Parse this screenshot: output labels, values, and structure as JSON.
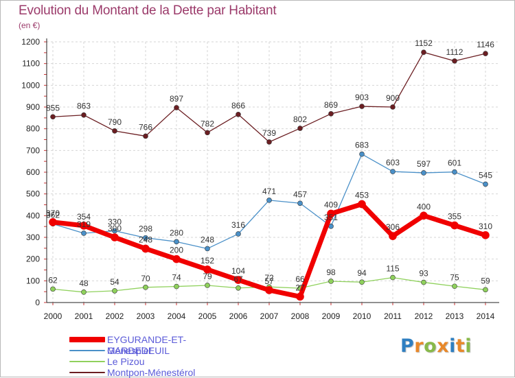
{
  "title": "Evolution du Montant de la Dette par Habitant",
  "unit_label": "(en €)",
  "brand": {
    "letters": [
      "P",
      "r",
      "o",
      "x",
      "i",
      "t",
      "i"
    ],
    "colors": [
      "#2f7fc1",
      "#e8882a",
      "#88b94a",
      "#e8882a",
      "#2f7fc1",
      "#e8882a",
      "#88b94a"
    ]
  },
  "chart_data": {
    "type": "line",
    "title": "Evolution du Montant de la Dette par Habitant",
    "ylabel": "(en €)",
    "xlabel": "",
    "ylim": [
      0,
      1200
    ],
    "yticks": [
      0,
      100,
      200,
      300,
      400,
      500,
      600,
      700,
      800,
      900,
      1000,
      1100,
      1200
    ],
    "x": [
      "2000",
      "2001",
      "2002",
      "2003",
      "2004",
      "2005",
      "2006",
      "2007",
      "2008",
      "2009",
      "2010",
      "2011",
      "2012",
      "2013",
      "2014"
    ],
    "grid": true,
    "legend_position": "bottom-left",
    "series": [
      {
        "name": "Montpon-Ménestérol",
        "color": "#6b1e22",
        "values": [
          855,
          863,
          790,
          766,
          897,
          782,
          866,
          739,
          802,
          869,
          903,
          900,
          1152,
          1112,
          1146
        ]
      },
      {
        "name": "Ménesplet",
        "color": "#4a90c8",
        "values": [
          362,
          319,
          330,
          298,
          280,
          248,
          316,
          471,
          457,
          351,
          683,
          603,
          597,
          601,
          545
        ]
      },
      {
        "name": "Le Pizou",
        "color": "#8fd15c",
        "values": [
          62,
          48,
          54,
          70,
          74,
          79,
          67,
          72,
          66,
          98,
          94,
          115,
          93,
          75,
          59
        ]
      },
      {
        "name": "EYGURANDE-ET-GARDEDEUIL",
        "color": "#f00000",
        "values": [
          370,
          354,
          300,
          248,
          200,
          152,
          104,
          57,
          27,
          409,
          453,
          306,
          400,
          355,
          310
        ]
      }
    ]
  },
  "legend": [
    {
      "name": "EYGURANDE-ET-GARDEDEUIL",
      "color": "#f00000",
      "width": "thick"
    },
    {
      "name": "Ménesplet",
      "color": "#4a90c8",
      "width": "thin"
    },
    {
      "name": "Le Pizou",
      "color": "#8fd15c",
      "width": "thin"
    },
    {
      "name": "Montpon-Ménestérol",
      "color": "#6b1e22",
      "width": "thin"
    }
  ]
}
